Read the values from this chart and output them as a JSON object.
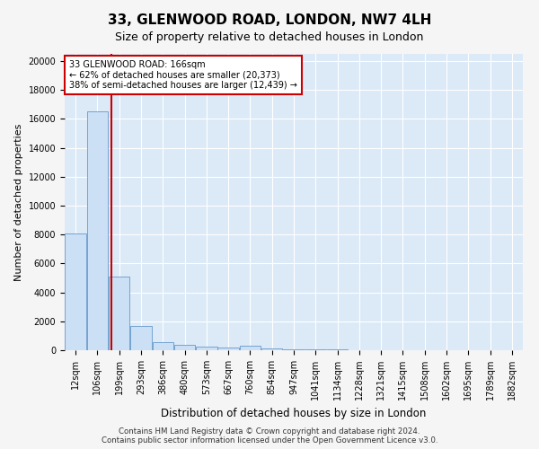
{
  "title1": "33, GLENWOOD ROAD, LONDON, NW7 4LH",
  "title2": "Size of property relative to detached houses in London",
  "xlabel": "Distribution of detached houses by size in London",
  "ylabel": "Number of detached properties",
  "categories": [
    "12sqm",
    "106sqm",
    "199sqm",
    "293sqm",
    "386sqm",
    "480sqm",
    "573sqm",
    "667sqm",
    "760sqm",
    "854sqm",
    "947sqm",
    "1041sqm",
    "1134sqm",
    "1228sqm",
    "1321sqm",
    "1415sqm",
    "1508sqm",
    "1602sqm",
    "1695sqm",
    "1789sqm",
    "1882sqm"
  ],
  "values": [
    8100,
    16500,
    5100,
    1700,
    530,
    370,
    240,
    170,
    280,
    120,
    80,
    60,
    40,
    30,
    20,
    15,
    10,
    8,
    5,
    4,
    3
  ],
  "bar_color": "#cce0f5",
  "bar_edge_color": "#6699cc",
  "vline_color": "#cc0000",
  "annotation_text": "33 GLENWOOD ROAD: 166sqm\n← 62% of detached houses are smaller (20,373)\n38% of semi-detached houses are larger (12,439) →",
  "annotation_box_facecolor": "#ffffff",
  "annotation_box_edgecolor": "#cc0000",
  "ylim": [
    0,
    20500
  ],
  "yticks": [
    0,
    2000,
    4000,
    6000,
    8000,
    10000,
    12000,
    14000,
    16000,
    18000,
    20000
  ],
  "ax_facecolor": "#dce9f7",
  "fig_facecolor": "#f5f5f5",
  "grid_color": "#ffffff",
  "footer1": "Contains HM Land Registry data © Crown copyright and database right 2024.",
  "footer2": "Contains public sector information licensed under the Open Government Licence v3.0.",
  "title1_fontsize": 11,
  "title2_fontsize": 9,
  "ylabel_fontsize": 8,
  "xlabel_fontsize": 8.5,
  "tick_fontsize": 7,
  "annotation_fontsize": 7,
  "footer_fontsize": 6.2
}
